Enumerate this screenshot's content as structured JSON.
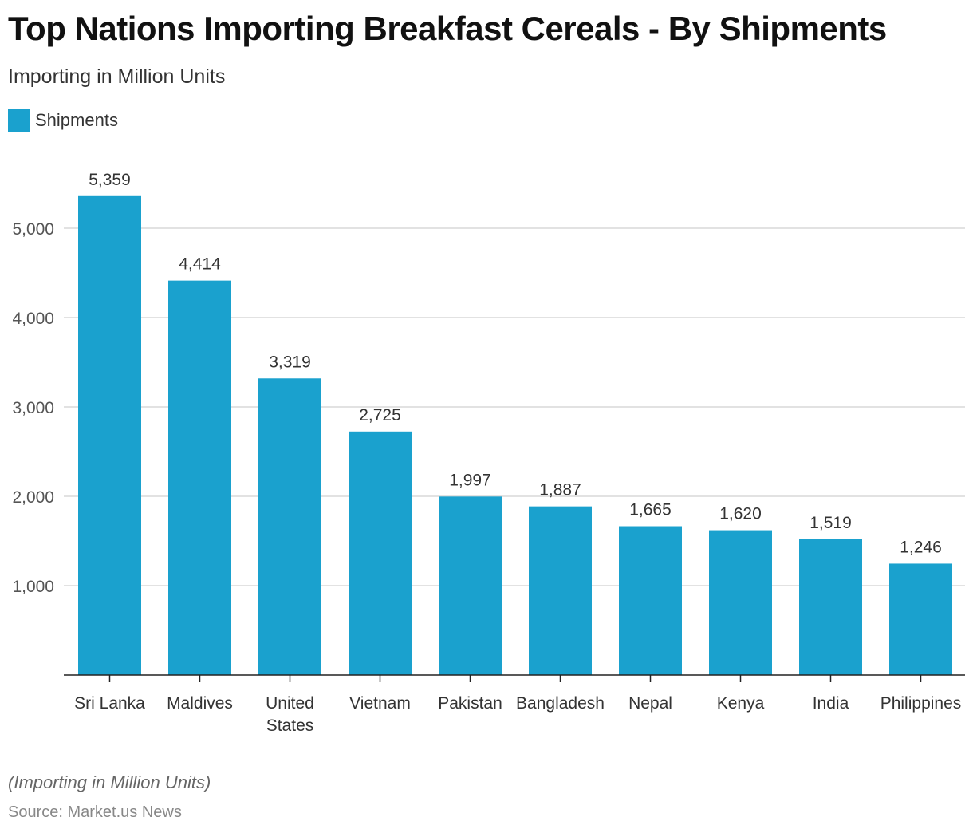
{
  "title": "Top Nations Importing Breakfast Cereals - By Shipments",
  "subtitle": "Importing in Million Units",
  "note": "(Importing in Million Units)",
  "source": "Source: Market.us News",
  "colors": {
    "bar": "#1aa1ce",
    "grid": "#d9d9d9",
    "axis": "#222222"
  },
  "chart_data": {
    "type": "bar",
    "title": "Top Nations Importing Breakfast Cereals - By Shipments",
    "xlabel": "",
    "ylabel": "",
    "ylim": [
      0,
      5700
    ],
    "yticks": [
      1000,
      2000,
      3000,
      4000,
      5000
    ],
    "ytick_labels": [
      "1,000",
      "2,000",
      "3,000",
      "4,000",
      "5,000"
    ],
    "grid": true,
    "legend": {
      "placement": "top-left",
      "entries": [
        "Shipments"
      ]
    },
    "categories": [
      "Sri Lanka",
      "Maldives",
      "United States",
      "Vietnam",
      "Pakistan",
      "Bangladesh",
      "Nepal",
      "Kenya",
      "India",
      "Philippines"
    ],
    "series": [
      {
        "name": "Shipments",
        "values": [
          5359,
          4414,
          3319,
          2725,
          1997,
          1887,
          1665,
          1620,
          1519,
          1246
        ]
      }
    ],
    "value_labels": [
      "5,359",
      "4,414",
      "3,319",
      "2,725",
      "1,997",
      "1,887",
      "1,665",
      "1,620",
      "1,519",
      "1,246"
    ]
  }
}
